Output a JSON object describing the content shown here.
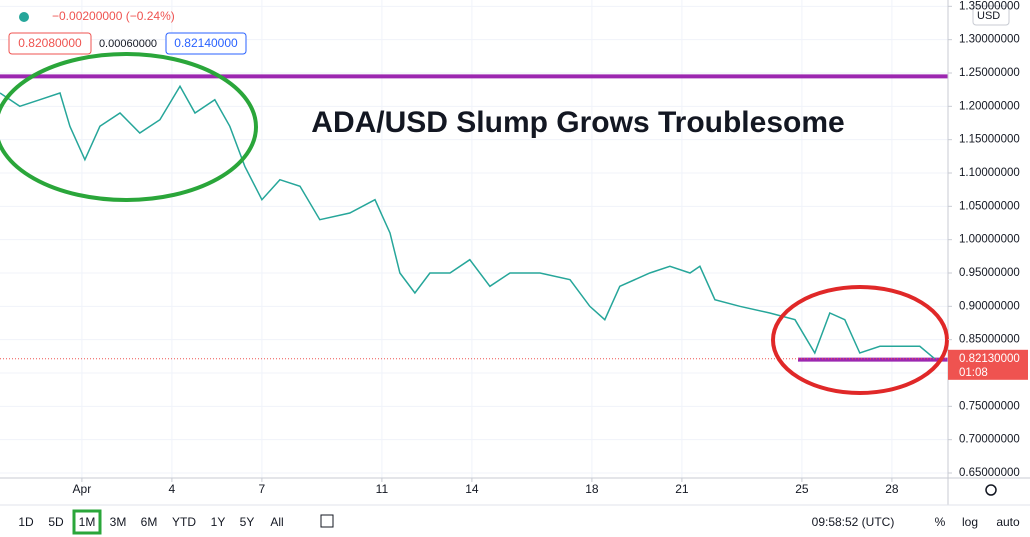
{
  "header": {
    "change": "−0.00200000 (−0.24%)",
    "bid": "0.82080000",
    "spread": "0.00060000",
    "ask": "0.82140000",
    "currency": "USD"
  },
  "chart_data": {
    "type": "line",
    "title": "ADA/USD Slump Grows Troublesome",
    "x": [
      -1.73,
      -1.07,
      -0.4,
      0.27,
      0.6,
      1.1,
      1.6,
      2.27,
      2.93,
      3.6,
      4.27,
      4.77,
      5.43,
      5.93,
      6.43,
      7,
      7.6,
      8.27,
      8.93,
      9.93,
      10.77,
      11.27,
      11.6,
      12.1,
      12.6,
      13.27,
      13.93,
      14.6,
      15.27,
      16.27,
      17.27,
      17.93,
      18.43,
      18.93,
      19.93,
      20.6,
      21.27,
      21.6,
      22.1,
      22.93,
      23.93,
      24.77,
      25.43,
      25.93,
      26.43,
      26.93,
      27.6,
      28.27,
      28.93,
      29.43
    ],
    "series": [
      {
        "color": "#26a69a",
        "values": [
          1.22,
          1.2,
          1.21,
          1.22,
          1.17,
          1.12,
          1.17,
          1.19,
          1.16,
          1.18,
          1.23,
          1.19,
          1.21,
          1.17,
          1.11,
          1.06,
          1.09,
          1.08,
          1.03,
          1.04,
          1.06,
          1.01,
          0.95,
          0.92,
          0.95,
          0.95,
          0.97,
          0.93,
          0.95,
          0.95,
          0.94,
          0.9,
          0.88,
          0.93,
          0.95,
          0.96,
          0.95,
          0.96,
          0.91,
          0.9,
          0.89,
          0.88,
          0.83,
          0.89,
          0.88,
          0.83,
          0.84,
          0.84,
          0.84,
          0.8213
        ]
      }
    ],
    "xlim": [
      -1.73,
      29.87
    ],
    "xticks": [
      {
        "value": 1,
        "label": "Apr"
      },
      4,
      7,
      11,
      14,
      18,
      21,
      25,
      28
    ],
    "ylim": [
      0.6425,
      1.3595
    ],
    "yticks": [
      {
        "value": 0.65,
        "label": "0.65000000"
      },
      {
        "value": 0.7,
        "label": "0.70000000"
      },
      {
        "value": 0.75,
        "label": "0.75000000"
      },
      {
        "value": 0.8,
        "label": "0.80000000"
      },
      {
        "value": 0.85,
        "label": "0.85000000"
      },
      {
        "value": 0.9,
        "label": "0.90000000"
      },
      {
        "value": 0.95,
        "label": "0.95000000"
      },
      {
        "value": 1.0,
        "label": "1.00000000"
      },
      {
        "value": 1.05,
        "label": "1.05000000"
      },
      {
        "value": 1.1,
        "label": "1.10000000"
      },
      {
        "value": 1.15,
        "label": "1.15000000"
      },
      {
        "value": 1.2,
        "label": "1.20000000"
      },
      {
        "value": 1.25,
        "label": "1.25000000"
      },
      {
        "value": 1.3,
        "label": "1.30000000"
      },
      {
        "value": 1.35,
        "label": "1.35000000"
      }
    ],
    "levels": [
      1.245,
      0.82
    ],
    "last_price": {
      "value": 0.8213,
      "label": "0.82130000",
      "countdown": "01:08"
    },
    "grid": true
  },
  "toolbar": {
    "ranges": [
      "1D",
      "5D",
      "1M",
      "3M",
      "6M",
      "YTD",
      "1Y",
      "5Y",
      "All"
    ],
    "selected": 2,
    "time": "09:58:52 (UTC)",
    "options": [
      "%",
      "log",
      "auto"
    ]
  }
}
